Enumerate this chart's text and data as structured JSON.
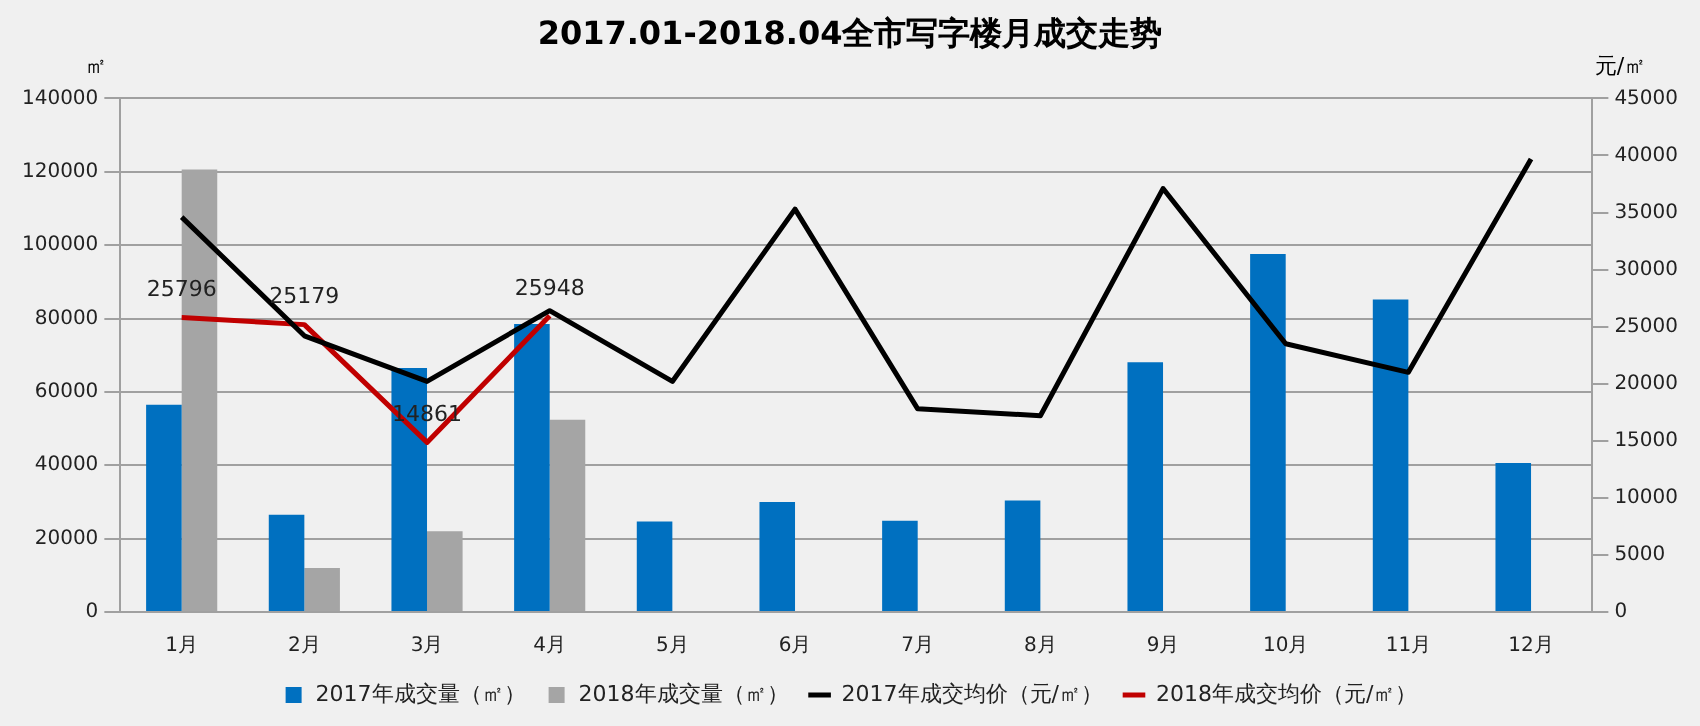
{
  "chart_data": {
    "type": "bar",
    "title": "2017.01-2018.04全市写字楼月成交走势",
    "ylabel": "㎡",
    "y2label": "元/㎡",
    "categories": [
      "1月",
      "2月",
      "3月",
      "4月",
      "5月",
      "6月",
      "7月",
      "8月",
      "9月",
      "10月",
      "11月",
      "12月"
    ],
    "series": [
      {
        "name": "2017年成交量（㎡）",
        "color": "#0070c0",
        "values": [
          56500,
          26500,
          66500,
          78500,
          24700,
          30000,
          24900,
          30400,
          68100,
          97600,
          85200,
          40600
        ]
      },
      {
        "name": "2018年成交量（㎡）",
        "color": "#a5a5a5",
        "values": [
          120600,
          12000,
          22000,
          52400,
          null,
          null,
          null,
          null,
          null,
          null,
          null,
          null
        ]
      },
      {
        "name": "2017年成交均价（元/㎡）",
        "type": "line",
        "axis": "y2",
        "color": "#000000",
        "values": [
          34600,
          24200,
          20200,
          26400,
          20200,
          35300,
          17800,
          17200,
          37100,
          23500,
          21000,
          39700
        ]
      },
      {
        "name": "2018年成交均价（元/㎡）",
        "type": "line",
        "axis": "y2",
        "color": "#c00000",
        "values": [
          25796,
          25179,
          14861,
          25948,
          null,
          null,
          null,
          null,
          null,
          null,
          null,
          null
        ],
        "value_labels": [
          "25796",
          "25179",
          "14861",
          "25948",
          null,
          null,
          null,
          null,
          null,
          null,
          null,
          null
        ]
      }
    ],
    "ylim": [
      0,
      140000
    ],
    "yticks": [
      0,
      20000,
      40000,
      60000,
      80000,
      100000,
      120000,
      140000
    ],
    "y2lim": [
      0,
      45000
    ],
    "y2ticks": [
      0,
      5000,
      10000,
      15000,
      20000,
      25000,
      30000,
      35000,
      40000,
      45000
    ],
    "grid": "y",
    "legend": "bottom",
    "marker": "none",
    "line_style": "solid"
  }
}
